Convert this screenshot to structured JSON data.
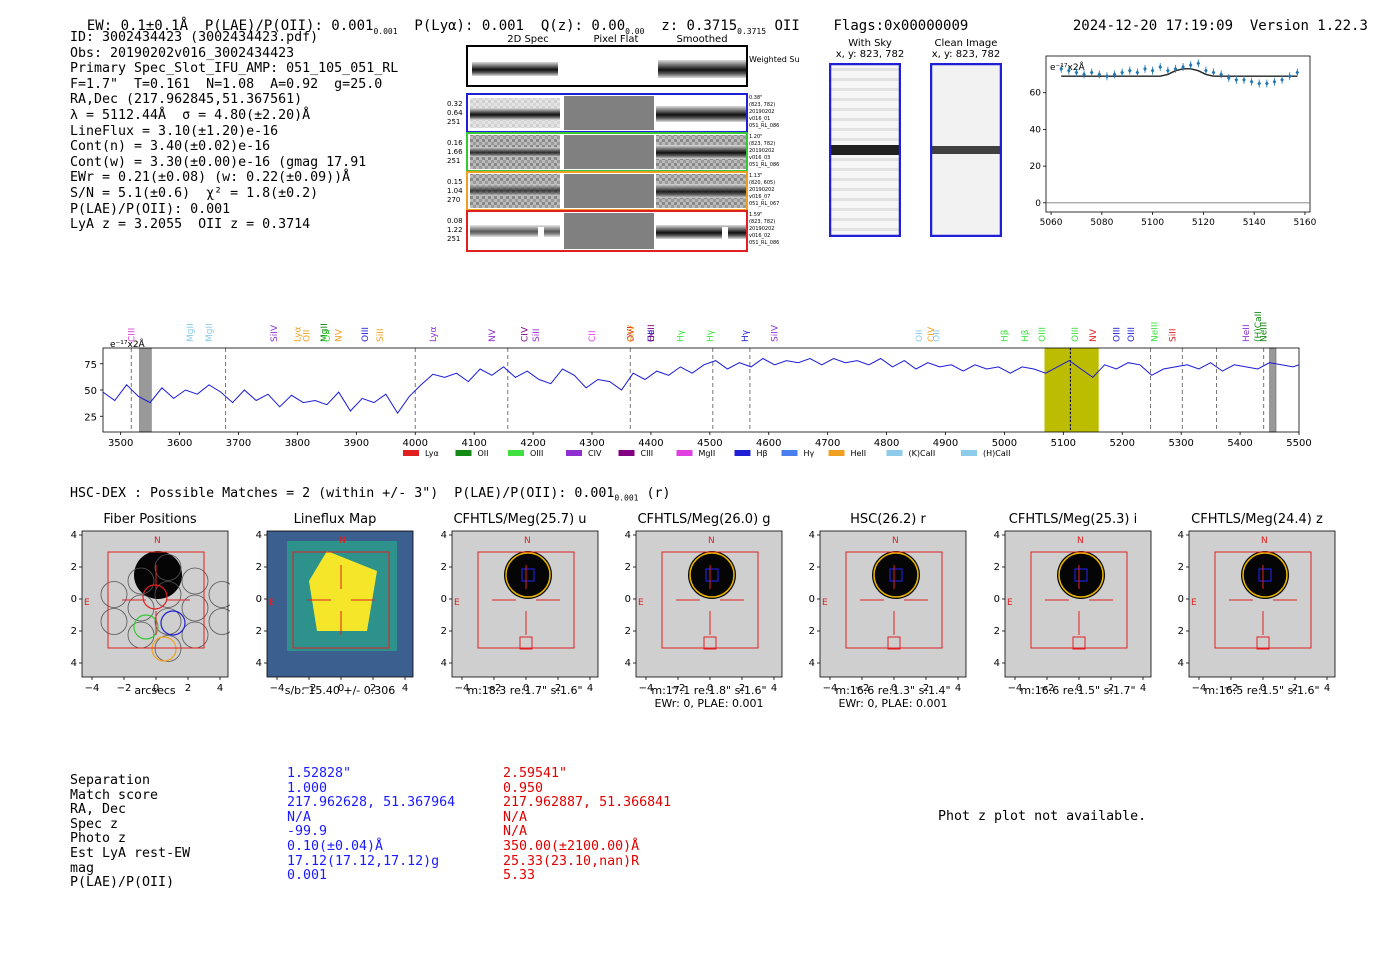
{
  "header": {
    "ew": "EW: 0.1±0.1Å",
    "plae_oii": "P(LAE)/P(OII): 0.001",
    "plya": "P(Lyα): 0.001",
    "qz": "Q(z): 0.00",
    "z": "z: 0.3715",
    "z_line": "OII",
    "flags": "Flags:0x00000009",
    "timestamp": "2024-12-20 17:19:09",
    "version": "Version 1.22.3"
  },
  "info": [
    "ID: 3002434423 (3002434423.pdf)",
    "Obs: 20190202v016_3002434423",
    "Primary Spec_Slot_IFU_AMP: 051_105_051_RL",
    "F=1.7\"  T=0.161  N=1.08  A=0.92  g=25.0",
    "RA,Dec (217.962845,51.367561)",
    "λ = 5112.44Å  σ = 4.80(±2.20)Å",
    "LineFlux = 3.10(±1.20)e-16",
    "Cont(n) = 3.40(±0.02)e-16",
    "Cont(w) = 3.30(±0.00)e-16 (gmag 17.91",
    "EWr = 0.21(±0.08) (w: 0.22(±0.09))Å",
    "S/N = 5.1(±0.6)  χ² = 1.8(±0.2)",
    "P(LAE)/P(OII): 0.001",
    "LyA z = 3.2055  OII z = 0.3714"
  ],
  "spec2d": {
    "col_titles": [
      "2D Spec",
      "Pixel Flat",
      "Smoothed"
    ],
    "weighted_label": "Weighted Sum",
    "rows": [
      {
        "left": [
          "0.32",
          "0.64",
          "251"
        ],
        "right": [
          "0.38\"",
          "(823, 782)",
          "20190202",
          "v016_01",
          "051_RL_086"
        ],
        "color": "#1f1fd6"
      },
      {
        "left": [
          "0.16",
          "1.66",
          "251"
        ],
        "right": [
          "1.20\"",
          "(823, 782)",
          "20190202",
          "v016_03",
          "051_RL_086"
        ],
        "color": "#37c837"
      },
      {
        "left": [
          "0.15",
          "1.04",
          "270"
        ],
        "right": [
          "1.13\"",
          "(820, 605)",
          "20190202",
          "v016_07",
          "051_RL_067"
        ],
        "color": "#f0a020"
      },
      {
        "left": [
          "0.08",
          "1.22",
          "251"
        ],
        "right": [
          "1.59\"",
          "(823, 782)",
          "20190202",
          "v016_02",
          "051_RL_086"
        ],
        "color": "#e02020"
      }
    ]
  },
  "cutouts": {
    "with_sky_title": "With Sky",
    "with_sky_coord": "x, y: 823, 782",
    "clean_title": "Clean Image",
    "clean_coord": "x, y: 823, 782"
  },
  "zoom_plot_units": "e⁻¹⁷x2Å",
  "spectrum_units": "e⁻¹⁷x2Å",
  "chart_data": [
    {
      "type": "line",
      "name": "zoom-spectrum",
      "x": [
        5064,
        5067,
        5070,
        5073,
        5076,
        5079,
        5082,
        5085,
        5088,
        5091,
        5094,
        5097,
        5100,
        5103,
        5106,
        5109,
        5112,
        5115,
        5118,
        5121,
        5124,
        5127,
        5130,
        5133,
        5136,
        5139,
        5142,
        5145,
        5148,
        5151,
        5154,
        5157
      ],
      "y": [
        73,
        72,
        71,
        70,
        71,
        70,
        69,
        70,
        71,
        72,
        71,
        73,
        72,
        74,
        72,
        73,
        74,
        75,
        76,
        72,
        71,
        70,
        68,
        67,
        67,
        66,
        65,
        65,
        66,
        67,
        69,
        71
      ],
      "model_y": [
        69,
        69,
        69,
        69,
        69,
        69,
        69,
        69,
        69,
        69,
        69,
        69,
        69,
        69,
        70,
        72,
        73,
        73,
        72,
        70,
        69,
        69,
        69,
        69,
        69,
        69,
        69,
        69,
        69,
        69,
        69,
        69
      ],
      "xlim": [
        5058,
        5162
      ],
      "ylim": [
        -5,
        80
      ],
      "xticks": [
        5060,
        5080,
        5100,
        5120,
        5140,
        5160
      ],
      "yticks": [
        0,
        20,
        40,
        60
      ]
    },
    {
      "type": "line",
      "name": "full-spectrum",
      "xlim": [
        3470,
        5500
      ],
      "ylim": [
        10,
        90
      ],
      "xticks": [
        3500,
        3600,
        3700,
        3800,
        3900,
        4000,
        4100,
        4200,
        4300,
        4400,
        4500,
        4600,
        4700,
        4800,
        4900,
        5000,
        5100,
        5200,
        5300,
        5400,
        5500
      ],
      "yticks": [
        25,
        50,
        75
      ],
      "x": [
        3470,
        3490,
        3510,
        3530,
        3550,
        3570,
        3590,
        3610,
        3630,
        3650,
        3670,
        3690,
        3710,
        3730,
        3750,
        3770,
        3790,
        3810,
        3830,
        3850,
        3870,
        3890,
        3910,
        3930,
        3950,
        3970,
        3990,
        4010,
        4030,
        4050,
        4070,
        4090,
        4110,
        4130,
        4150,
        4170,
        4190,
        4210,
        4230,
        4250,
        4270,
        4290,
        4310,
        4330,
        4350,
        4370,
        4390,
        4410,
        4430,
        4450,
        4470,
        4490,
        4510,
        4530,
        4550,
        4570,
        4590,
        4610,
        4630,
        4650,
        4670,
        4690,
        4710,
        4730,
        4750,
        4770,
        4790,
        4810,
        4830,
        4850,
        4870,
        4890,
        4910,
        4930,
        4950,
        4970,
        4990,
        5010,
        5030,
        5050,
        5070,
        5090,
        5110,
        5130,
        5150,
        5170,
        5190,
        5210,
        5230,
        5250,
        5270,
        5290,
        5310,
        5330,
        5350,
        5370,
        5390,
        5410,
        5430,
        5450,
        5470,
        5490,
        5500
      ],
      "y": [
        48,
        40,
        55,
        44,
        38,
        52,
        42,
        50,
        46,
        55,
        48,
        38,
        50,
        40,
        46,
        34,
        45,
        38,
        40,
        36,
        48,
        30,
        42,
        38,
        46,
        28,
        44,
        55,
        65,
        62,
        66,
        58,
        70,
        64,
        72,
        62,
        68,
        60,
        56,
        70,
        64,
        52,
        60,
        58,
        50,
        66,
        60,
        68,
        64,
        72,
        66,
        74,
        78,
        70,
        76,
        72,
        80,
        74,
        78,
        76,
        80,
        74,
        80,
        76,
        78,
        74,
        80,
        72,
        78,
        70,
        76,
        72,
        74,
        68,
        74,
        70,
        72,
        66,
        72,
        70,
        66,
        72,
        78,
        70,
        62,
        74,
        70,
        76,
        74,
        64,
        70,
        72,
        74,
        70,
        76,
        68,
        74,
        72,
        70,
        76,
        74,
        72,
        74
      ],
      "markers": [
        {
          "at": 3518,
          "label": "CIII",
          "color": "#e040e0"
        },
        {
          "at": 3618,
          "label": "MgII",
          "color": "#8ccbea"
        },
        {
          "at": 3650,
          "label": "MgII",
          "color": "#8ccbea"
        },
        {
          "at": 3760,
          "label": "SiIV",
          "color": "#9030d0"
        },
        {
          "at": 3800,
          "label": "Lyα",
          "color": "#f0a020"
        },
        {
          "at": 3815,
          "label": "OII",
          "color": "#f0a020"
        },
        {
          "at": 3845,
          "label": "MgII",
          "color": "#138a13"
        },
        {
          "at": 3850,
          "label": "OII",
          "color": "#40e040"
        },
        {
          "at": 3870,
          "label": "NV",
          "color": "#f0a020"
        },
        {
          "at": 3915,
          "label": "OIII",
          "color": "#1f1fd6"
        },
        {
          "at": 3940,
          "label": "SiII",
          "color": "#f0a020"
        },
        {
          "at": 4030,
          "label": "Lyα",
          "color": "#9030d0"
        },
        {
          "at": 4130,
          "label": "NV",
          "color": "#9030d0"
        },
        {
          "at": 4185,
          "label": "CIV",
          "color": "#800080"
        },
        {
          "at": 4205,
          "label": "SiII",
          "color": "#9030d0"
        },
        {
          "at": 4300,
          "label": "CII",
          "color": "#e040e0"
        },
        {
          "at": 4365,
          "label": "OVI",
          "color": "#e02020"
        },
        {
          "at": 4366,
          "label": "SiIV",
          "color": "#f0a020"
        },
        {
          "at": 4400,
          "label": "OII",
          "color": "#1f1fd6"
        },
        {
          "at": 4400,
          "label": "HeII",
          "color": "#800080"
        },
        {
          "at": 4450,
          "label": "Hγ",
          "color": "#40e040"
        },
        {
          "at": 4500,
          "label": "Hγ",
          "color": "#40e040"
        },
        {
          "at": 4560,
          "label": "Hγ",
          "color": "#1f1fd6"
        },
        {
          "at": 4610,
          "label": "SiIV",
          "color": "#9030d0"
        },
        {
          "at": 4855,
          "label": "OII",
          "color": "#8ccbea"
        },
        {
          "at": 4875,
          "label": "CIV",
          "color": "#f0a020"
        },
        {
          "at": 4885,
          "label": "OII",
          "color": "#8ccbea"
        },
        {
          "at": 5000,
          "label": "Hβ",
          "color": "#40e040"
        },
        {
          "at": 5035,
          "label": "Hβ",
          "color": "#40e040"
        },
        {
          "at": 5064,
          "label": "OIII",
          "color": "#40e040"
        },
        {
          "at": 5120,
          "label": "OIII",
          "color": "#40e040"
        },
        {
          "at": 5150,
          "label": "NV",
          "color": "#e02020"
        },
        {
          "at": 5190,
          "label": "OIII",
          "color": "#1f1fd6"
        },
        {
          "at": 5215,
          "label": "OIII",
          "color": "#1f1fd6"
        },
        {
          "at": 5255,
          "label": "NeIII",
          "color": "#40e040"
        },
        {
          "at": 5285,
          "label": "SiII",
          "color": "#e02020"
        },
        {
          "at": 5410,
          "label": "HeII",
          "color": "#9030d0"
        },
        {
          "at": 5430,
          "label": "(H)CaII",
          "color": "#138a13"
        },
        {
          "at": 5440,
          "label": "NeIII",
          "color": "#138a13"
        }
      ],
      "highlight_range": [
        5068,
        5160
      ],
      "line_center": 5112,
      "legend": [
        {
          "label": "Lyα",
          "color": "#e02020"
        },
        {
          "label": "OII",
          "color": "#138a13"
        },
        {
          "label": "OIII",
          "color": "#40e040"
        },
        {
          "label": "CIV",
          "color": "#9030d0"
        },
        {
          "label": "CIII",
          "color": "#800080"
        },
        {
          "label": "MgII",
          "color": "#e040e0"
        },
        {
          "label": "Hβ",
          "color": "#1f1fd6"
        },
        {
          "label": "Hγ",
          "color": "#4a7ff0"
        },
        {
          "label": "HeII",
          "color": "#f0a020"
        },
        {
          "label": "(K)CaII",
          "color": "#8ccbea"
        },
        {
          "label": "(H)CaII",
          "color": "#8ccbea"
        }
      ]
    }
  ],
  "hsc": {
    "title": "HSC-DEX : Possible Matches = 2 (within +/- 3\")",
    "plae": "P(LAE)/P(OII): 0.001",
    "band": "(r)"
  },
  "panels": [
    {
      "title": "Fiber Positions",
      "caption": "arcsecs",
      "caption2": ""
    },
    {
      "title": "Lineflux Map",
      "caption": "s/b: 15.40 +/- 0.306",
      "caption2": ""
    },
    {
      "title": "CFHTLS/Meg(25.7) u",
      "caption": "m:18.3  re:1.7\"  s:1.6\"",
      "caption2": ""
    },
    {
      "title": "CFHTLS/Meg(26.0) g",
      "caption": "m:17.1  re:1.8\"  s:1.6\"",
      "caption2": "EWr: 0, PLAE: 0.001"
    },
    {
      "title": "HSC(26.2) r",
      "caption": "m:16.6  re:1.3\"  s:1.4\"",
      "caption2": "EWr: 0, PLAE: 0.001"
    },
    {
      "title": "CFHTLS/Meg(25.3) i",
      "caption": "m:16.6  re:1.5\"  s:1.7\"",
      "caption2": ""
    },
    {
      "title": "CFHTLS/Meg(24.4) z",
      "caption": "m:16.5  re:1.5\"  s:1.6\"",
      "caption2": ""
    }
  ],
  "panel_ticks": [
    "4",
    "2",
    "0",
    "−2",
    "−4"
  ],
  "panel_xticks": [
    "−4",
    "−2",
    "0",
    "2",
    "4"
  ],
  "panel_labels": {
    "north": "N",
    "east": "E"
  },
  "matches": {
    "labels": [
      "Separation",
      "Match score",
      "RA, Dec",
      "Spec z",
      "Photo z",
      "Est LyA rest-EW",
      "mag",
      "P(LAE)/P(OII)"
    ],
    "match1": [
      "1.52828\"",
      "1.000",
      "217.962628, 51.367964",
      "N/A",
      "-99.9",
      "0.10(±0.04)Å",
      "17.12(17.12,17.12)g",
      "0.001"
    ],
    "match2": [
      "2.59541\"",
      "0.950",
      "217.962887, 51.366841",
      "N/A",
      "N/A",
      "350.00(±2100.00)Å",
      "25.33(23.10,nan)R",
      "5.33"
    ],
    "match1_color": "#1a1aff",
    "match2_color": "#e00000"
  },
  "photz_note": "Phot z plot not available."
}
